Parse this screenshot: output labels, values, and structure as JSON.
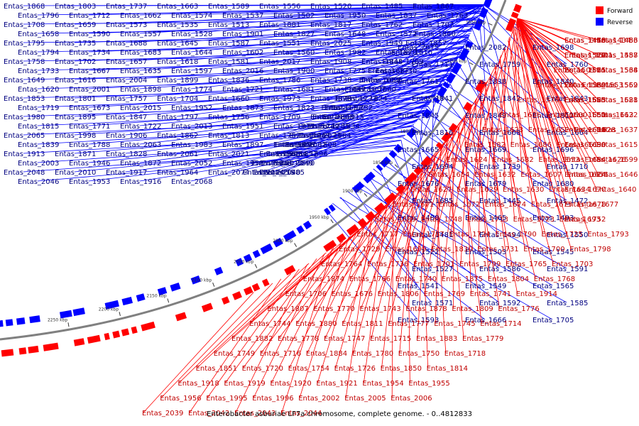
{
  "caption": "Enterobacter asburiae LF7a chromosome, complete genome. - 0..4812833",
  "legend": [
    {
      "label": "Forward",
      "color": "#ff0000"
    },
    {
      "label": "Reverse",
      "color": "#0000ff"
    }
  ],
  "colors": {
    "forward": "#ff0000",
    "reverse": "#0000ff",
    "backbone": "#808080",
    "forward_label": "#c00000",
    "reverse_label": "#000080"
  },
  "ticks": [
    "1650 kbp",
    "1700 kbp",
    "1750 kbp",
    "1800 kbp",
    "1850 kbp",
    "1900 kbp",
    "1950 kbp",
    "2000 kbp",
    "2050 kbp",
    "2100 kbp",
    "2150 kbp",
    "2200 kbp",
    "2250 kbp"
  ],
  "reverse_labels": [
    "Entas_1868",
    "Entas_1803",
    "Entas_1737",
    "Entas_1663",
    "Entas_1589",
    "Entas_1556",
    "Entas_1520",
    "Entas_1485",
    "Entas_1867",
    "Entas_1796",
    "Entas_1712",
    "Entas_1662",
    "Entas_1574",
    "Entas_1537",
    "Entas_1502",
    "Entas_1950",
    "Entas_1837",
    "Entas_1763",
    "Entas_1708",
    "Entas_1659",
    "Entas_1573",
    "Entas_1535",
    "Entas_1513",
    "Entas_1881",
    "Entas_1817",
    "Entas_1762",
    "Entas_1707",
    "Entas_1658",
    "Entas_1590",
    "Entas_1557",
    "Entas_1528",
    "Entas_1901",
    "Entas_1827",
    "Entas_1648",
    "Entas_1572",
    "Entas_1860",
    "Entas_1795",
    "Entas_1735",
    "Entas_1688",
    "Entas_1645",
    "Entas_1587",
    "Entas_1551",
    "Entas_2025",
    "Entas_1949",
    "Entas_1857",
    "Entas_1794",
    "Entas_1734",
    "Entas_1683",
    "Entas_1644",
    "Entas_1602",
    "Entas_1560",
    "Entas_1982",
    "Entas_1870",
    "Entas_1810",
    "Entas_1758",
    "Entas_1702",
    "Entas_1657",
    "Entas_1618",
    "Entas_1581",
    "Entas_2017",
    "Entas_1908",
    "Entas_1848",
    "Entas_1789",
    "Entas_1733",
    "Entas_1667",
    "Entas_1635",
    "Entas_1597",
    "Entas_2016",
    "Entas_1900",
    "Entas_1775",
    "Entas_1730",
    "Entas_1687",
    "Entas_1649",
    "Entas_1616",
    "Entas_2004",
    "Entas_1899",
    "Entas_1836",
    "Entas_1786",
    "Entas_1738",
    "Entas_1695",
    "Entas_1655",
    "Entas_1620",
    "Entas_2001",
    "Entas_1898",
    "Entas_1774",
    "Entas_1721",
    "Entas_1681",
    "Entas_1647",
    "Entas_2000",
    "Entas_1907",
    "Entas_1853",
    "Entas_1801",
    "Entas_1757",
    "Entas_1704",
    "Entas_1660",
    "Entas_1973",
    "Entas_1879",
    "Entas_1824",
    "Entas_1773",
    "Entas_1719",
    "Entas_1673",
    "Entas_2015",
    "Entas_1952",
    "Entas_1873",
    "Entas_1823",
    "Entas_1772",
    "Entas_1732",
    "Entas_1692",
    "Entas_1980",
    "Entas_1895",
    "Entas_1847",
    "Entas_1797",
    "Entas_1756",
    "Entas_1709",
    "Entas_1999",
    "Entas_1915",
    "Entas_1863",
    "Entas_1815",
    "Entas_1771",
    "Entas_1722",
    "Entas_2013",
    "Entas_1951",
    "Entas_1877",
    "Entas_1834",
    "Entas_1785",
    "Entas_1742",
    "Entas_2065",
    "Entas_1998",
    "Entas_1906",
    "Entas_1862",
    "Entas_1813",
    "Entas_1767",
    "Entas_2064",
    "Entas_2023",
    "Entas_1967",
    "Entas_1839",
    "Entas_1788",
    "Entas_2063",
    "Entas_1983",
    "Entas_1897",
    "Entas_1856",
    "Entas_1808",
    "Entas_2062",
    "Entas_1997",
    "Entas_1913",
    "Entas_1871",
    "Entas_1828",
    "Entas_2061",
    "Entas_2021",
    "Entas_1965",
    "Entas_1896",
    "Entas_1852",
    "Entas_2054",
    "Entas_2003",
    "Entas_1946",
    "Entas_1872",
    "Entas_2052",
    "Entas_1958",
    "Entas_1890",
    "Entas_2049",
    "Entas_2012",
    "Entas_1961",
    "Entas_2048",
    "Entas_2010",
    "Entas_1917",
    "Entas_1964",
    "Entas_2074",
    "Entas_2040",
    "Entas_1985",
    "Entas_2056",
    "Entas_2024",
    "Entas_2046",
    "Entas_1953",
    "Entas_1916",
    "Entas_2068",
    "Entas_2075",
    "Entas_2082",
    "Entas_1698",
    "Entas_1711",
    "Entas_1759",
    "Entas_1760",
    "Entas_1761",
    "Entas_1838",
    "Entas_1840",
    "Entas_1841",
    "Entas_1842",
    "Entas_1843",
    "Entas_1845",
    "Entas_1849",
    "Entas_1812",
    "Entas_1816",
    "Entas_1668",
    "Entas_1664",
    "Entas_1665",
    "Entas_1669",
    "Entas_1696",
    "Entas_1694",
    "Entas_1739",
    "Entas_1710",
    "Entas_1676",
    "Entas_1679",
    "Entas_1680",
    "Entas_1685",
    "Entas_1445",
    "Entas_1472",
    "Entas_1480",
    "Entas_1465",
    "Entas_1493",
    "Entas_1481",
    "Entas_1494",
    "Entas_1550",
    "Entas_1522",
    "Entas_1503",
    "Entas_1545",
    "Entas_1527",
    "Entas_1586",
    "Entas_1591",
    "Entas_1541",
    "Entas_1549",
    "Entas_1565",
    "Entas_1571",
    "Entas_1592",
    "Entas_1585",
    "Entas_1593",
    "Entas_1666",
    "Entas_1705"
  ],
  "forward_labels": [
    "Entas_1434",
    "Entas_1440",
    "Entas_1453",
    "Entas_1458",
    "Entas_1486",
    "Entas_1473",
    "Entas_1501",
    "Entas_1510",
    "Entas_1487",
    "Entas_1517",
    "Entas_1558",
    "Entas_1529",
    "Entas_1509",
    "Entas_1561",
    "Entas_1534",
    "Entas_1515",
    "Entas_1568",
    "Entas_1521",
    "Entas_1580",
    "Entas_1553",
    "Entas_1559",
    "Entas_1532",
    "Entas_1562",
    "Entas_1569",
    "Entas_1576",
    "Entas_1555",
    "Entas_1588",
    "Entas_1563",
    "Entas_1621",
    "Entas_1625",
    "Entas_1636",
    "Entas_1600",
    "Entas_1613",
    "Entas_1650",
    "Entas_1622",
    "Entas_1651",
    "Entas_1623",
    "Entas_1652",
    "Entas_1628",
    "Entas_1601",
    "Entas_1637",
    "Entas_1610",
    "Entas_1582",
    "Entas_1686",
    "Entas_1661",
    "Entas_1639",
    "Entas_1615",
    "Entas_1690",
    "Entas_1624",
    "Entas_1682",
    "Entas_1653",
    "Entas_1626",
    "Entas_1599",
    "Entas_1684",
    "Entas_1654",
    "Entas_1632",
    "Entas_1607",
    "Entas_1656",
    "Entas_1646",
    "Entas_1614",
    "Entas_1627",
    "Entas_1629",
    "Entas_1630",
    "Entas_1634",
    "Entas_1640",
    "Entas_1670",
    "Entas_1671",
    "Entas_1672",
    "Entas_1674",
    "Entas_1675",
    "Entas_1677",
    "Entas_1678",
    "Entas_1689",
    "Entas_1748",
    "Entas_1713",
    "Entas_1723",
    "Entas_1693",
    "Entas_1752",
    "Entas_1717",
    "Entas_1787",
    "Entas_1724",
    "Entas_1790",
    "Entas_1725",
    "Entas_1793",
    "Entas_1729",
    "Entas_1699",
    "Entas_1830",
    "Entas_1731",
    "Entas_1700",
    "Entas_1798",
    "Entas_1764",
    "Entas_1736",
    "Entas_1701",
    "Entas_1799",
    "Entas_1765",
    "Entas_1703",
    "Entas_1874",
    "Entas_1766",
    "Entas_1740",
    "Entas_1875",
    "Entas_1804",
    "Entas_1768",
    "Entas_1706",
    "Entas_1676",
    "Entas_1806",
    "Entas_1769",
    "Entas_1741",
    "Entas_1914",
    "Entas_1807",
    "Entas_1770",
    "Entas_1743",
    "Entas_1878",
    "Entas_1809",
    "Entas_1776",
    "Entas_1744",
    "Entas_1880",
    "Entas_1811",
    "Entas_1777",
    "Entas_1745",
    "Entas_1714",
    "Entas_1882",
    "Entas_1778",
    "Entas_1747",
    "Entas_1715",
    "Entas_1883",
    "Entas_1779",
    "Entas_1749",
    "Entas_1716",
    "Entas_1884",
    "Entas_1780",
    "Entas_1750",
    "Entas_1718",
    "Entas_1851",
    "Entas_1720",
    "Entas_1754",
    "Entas_1726",
    "Entas_1850",
    "Entas_1814",
    "Entas_1918",
    "Entas_1919",
    "Entas_1920",
    "Entas_1921",
    "Entas_1954",
    "Entas_1955",
    "Entas_1956",
    "Entas_1995",
    "Entas_1996",
    "Entas_2002",
    "Entas_2005",
    "Entas_2006",
    "Entas_2039",
    "Entas_2042",
    "Entas_2043",
    "Entas_2044"
  ]
}
